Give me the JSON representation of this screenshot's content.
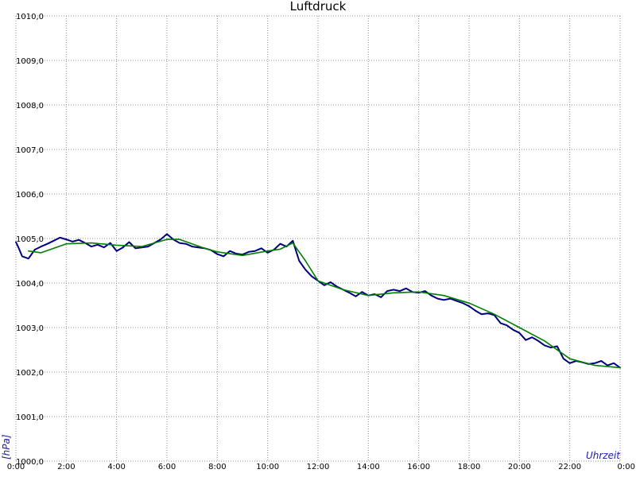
{
  "chart_data": {
    "type": "line",
    "title": "Luftdruck",
    "xlabel": "Uhrzeit",
    "ylabel": "[hPa]",
    "xlim": [
      0,
      24
    ],
    "ylim": [
      1000,
      1010
    ],
    "grid": true,
    "x_ticks": [
      {
        "value": 0,
        "label": "0:00"
      },
      {
        "value": 2,
        "label": "2:00"
      },
      {
        "value": 4,
        "label": "4:00"
      },
      {
        "value": 6,
        "label": "6:00"
      },
      {
        "value": 8,
        "label": "8:00"
      },
      {
        "value": 10,
        "label": "10:00"
      },
      {
        "value": 12,
        "label": "12:00"
      },
      {
        "value": 14,
        "label": "14:00"
      },
      {
        "value": 16,
        "label": "16:00"
      },
      {
        "value": 18,
        "label": "18:00"
      },
      {
        "value": 20,
        "label": "20:00"
      },
      {
        "value": 22,
        "label": "22:00"
      },
      {
        "value": 24,
        "label": "0:00"
      }
    ],
    "y_ticks": [
      {
        "value": 1000,
        "label": "1000,0"
      },
      {
        "value": 1001,
        "label": "1001,0"
      },
      {
        "value": 1002,
        "label": "1002,0"
      },
      {
        "value": 1003,
        "label": "1003,0"
      },
      {
        "value": 1004,
        "label": "1004,0"
      },
      {
        "value": 1005,
        "label": "1005,0"
      },
      {
        "value": 1006,
        "label": "1006,0"
      },
      {
        "value": 1007,
        "label": "1007,0"
      },
      {
        "value": 1008,
        "label": "1008,0"
      },
      {
        "value": 1009,
        "label": "1009,0"
      },
      {
        "value": 1010,
        "label": "1010,0"
      }
    ],
    "series": [
      {
        "color": "#00007f",
        "x": [
          0,
          0.1,
          0.25,
          0.5,
          0.75,
          1.0,
          1.25,
          1.5,
          1.75,
          2.0,
          2.25,
          2.5,
          2.75,
          3.0,
          3.25,
          3.5,
          3.75,
          4.0,
          4.25,
          4.5,
          4.75,
          5.0,
          5.25,
          5.5,
          5.75,
          6.0,
          6.25,
          6.5,
          6.75,
          7.0,
          7.25,
          7.5,
          7.75,
          8.0,
          8.25,
          8.5,
          8.75,
          9.0,
          9.25,
          9.5,
          9.75,
          10.0,
          10.25,
          10.5,
          10.75,
          11.0,
          11.25,
          11.5,
          11.75,
          12.0,
          12.25,
          12.5,
          12.75,
          13.0,
          13.25,
          13.5,
          13.75,
          14.0,
          14.25,
          14.5,
          14.75,
          15.0,
          15.25,
          15.5,
          15.75,
          16.0,
          16.25,
          16.5,
          16.75,
          17.0,
          17.25,
          17.5,
          17.75,
          18.0,
          18.25,
          18.5,
          18.75,
          19.0,
          19.25,
          19.5,
          19.75,
          20.0,
          20.25,
          20.5,
          20.75,
          21.0,
          21.25,
          21.5,
          21.75,
          22.0,
          22.25,
          22.5,
          22.75,
          23.0,
          23.25,
          23.5,
          23.75,
          24.0
        ],
        "y": [
          1004.92,
          1004.8,
          1004.6,
          1004.55,
          1004.75,
          1004.82,
          1004.88,
          1004.95,
          1005.02,
          1004.98,
          1004.93,
          1004.97,
          1004.9,
          1004.82,
          1004.86,
          1004.8,
          1004.9,
          1004.72,
          1004.8,
          1004.92,
          1004.78,
          1004.8,
          1004.82,
          1004.9,
          1004.98,
          1005.1,
          1004.98,
          1004.9,
          1004.88,
          1004.82,
          1004.8,
          1004.78,
          1004.74,
          1004.65,
          1004.6,
          1004.72,
          1004.66,
          1004.64,
          1004.7,
          1004.72,
          1004.78,
          1004.68,
          1004.75,
          1004.88,
          1004.82,
          1004.95,
          1004.5,
          1004.3,
          1004.15,
          1004.05,
          1003.95,
          1004.02,
          1003.92,
          1003.85,
          1003.78,
          1003.7,
          1003.8,
          1003.72,
          1003.75,
          1003.68,
          1003.82,
          1003.85,
          1003.82,
          1003.88,
          1003.8,
          1003.78,
          1003.82,
          1003.72,
          1003.65,
          1003.62,
          1003.65,
          1003.6,
          1003.55,
          1003.48,
          1003.38,
          1003.3,
          1003.32,
          1003.28,
          1003.1,
          1003.05,
          1002.95,
          1002.88,
          1002.72,
          1002.78,
          1002.7,
          1002.6,
          1002.55,
          1002.58,
          1002.3,
          1002.2,
          1002.25,
          1002.22,
          1002.18,
          1002.2,
          1002.25,
          1002.15,
          1002.2,
          1002.1
        ]
      },
      {
        "color": "#007f00",
        "x": [
          0.5,
          1.0,
          2.0,
          3.0,
          4.0,
          5.0,
          6.0,
          6.5,
          7.0,
          7.5,
          8.0,
          9.0,
          10.0,
          10.5,
          11.0,
          11.5,
          12.0,
          13.0,
          14.0,
          15.0,
          16.0,
          17.0,
          18.0,
          19.0,
          20.0,
          21.0,
          22.0,
          23.0,
          24.0
        ],
        "y": [
          1004.72,
          1004.68,
          1004.88,
          1004.9,
          1004.85,
          1004.82,
          1004.98,
          1004.98,
          1004.88,
          1004.78,
          1004.7,
          1004.62,
          1004.72,
          1004.76,
          1004.9,
          1004.5,
          1004.05,
          1003.85,
          1003.72,
          1003.78,
          1003.8,
          1003.72,
          1003.55,
          1003.3,
          1003.0,
          1002.7,
          1002.3,
          1002.15,
          1002.1
        ]
      }
    ]
  }
}
